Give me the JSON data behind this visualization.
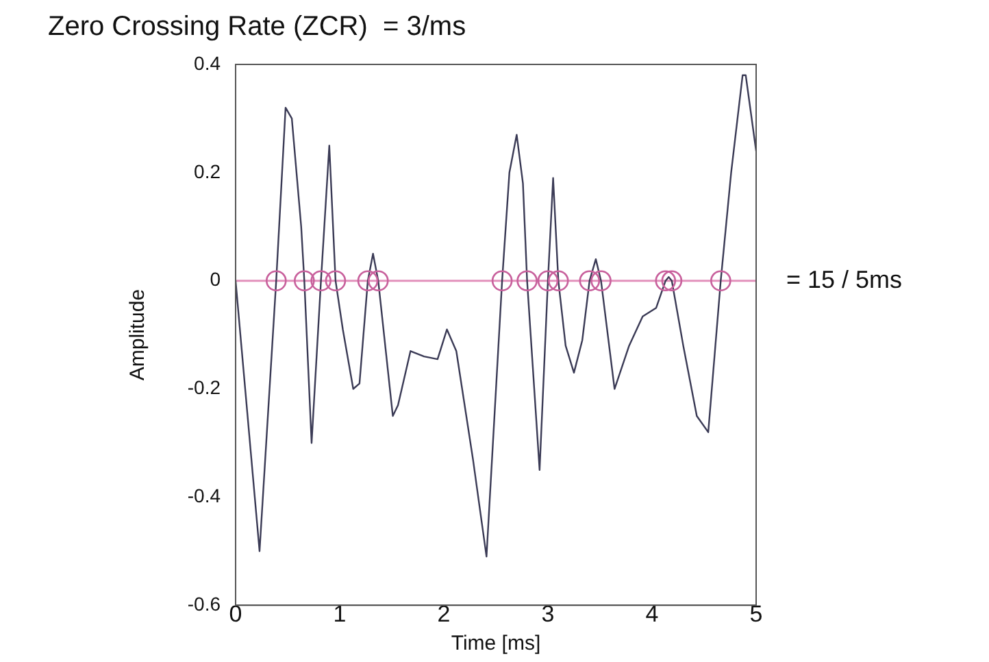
{
  "chart_data": {
    "type": "line",
    "title": "Zero Crossing Rate (ZCR)  = 3/ms",
    "xlabel": "Time [ms]",
    "ylabel": "Amplitude",
    "xlim": [
      0,
      5
    ],
    "xticks": [
      0,
      1,
      2,
      3,
      4,
      5
    ],
    "ylim": [
      -0.6,
      0.4
    ],
    "yticks": [
      -0.6,
      -0.4,
      -0.2,
      0,
      0.2,
      0.4
    ],
    "grid": false,
    "legend": false,
    "series": [
      {
        "type": "line",
        "marker": "none",
        "color": "#3a3a55",
        "x": [
          0,
          0.23,
          0.39,
          0.48,
          0.54,
          0.63,
          0.66,
          0.73,
          0.82,
          0.9,
          0.96,
          1.03,
          1.13,
          1.19,
          1.27,
          1.32,
          1.37,
          1.51,
          1.56,
          1.68,
          1.81,
          1.94,
          2.03,
          2.12,
          2.28,
          2.41,
          2.56,
          2.63,
          2.7,
          2.76,
          2.8,
          2.92,
          3.0,
          3.05,
          3.1,
          3.17,
          3.25,
          3.33,
          3.4,
          3.46,
          3.51,
          3.64,
          3.78,
          3.91,
          4.04,
          4.13,
          4.16,
          4.19,
          4.3,
          4.43,
          4.54,
          4.66,
          4.76,
          4.87,
          4.9,
          5.0
        ],
        "values": [
          0,
          -0.5,
          0,
          0.32,
          0.3,
          0.1,
          0,
          -0.3,
          0,
          0.25,
          0,
          -0.09,
          -0.2,
          -0.19,
          0,
          0.05,
          0,
          -0.25,
          -0.23,
          -0.13,
          -0.14,
          -0.145,
          -0.09,
          -0.13,
          -0.33,
          -0.51,
          0,
          0.2,
          0.27,
          0.18,
          0,
          -0.35,
          0,
          0.19,
          0,
          -0.12,
          -0.17,
          -0.11,
          0,
          0.04,
          0,
          -0.2,
          -0.12,
          -0.066,
          -0.05,
          0,
          0.007,
          0,
          -0.12,
          -0.25,
          -0.28,
          0,
          0.2,
          0.38,
          0.38,
          0.24
        ]
      },
      {
        "type": "scatter",
        "marker": "circle",
        "color": "#c8609c",
        "x": [
          0.39,
          0.66,
          0.82,
          0.96,
          1.27,
          1.37,
          2.56,
          2.8,
          3.0,
          3.1,
          3.4,
          3.51,
          4.13,
          4.19,
          4.66
        ],
        "values": [
          0,
          0,
          0,
          0,
          0,
          0,
          0,
          0,
          0,
          0,
          0,
          0,
          0,
          0,
          0
        ]
      }
    ],
    "ref_lines": [
      {
        "axis": "y",
        "value": 0,
        "color": "#e291bb"
      }
    ],
    "annotations": [
      {
        "text": "= 15 / 5ms",
        "x": 5,
        "y": 0
      }
    ]
  }
}
